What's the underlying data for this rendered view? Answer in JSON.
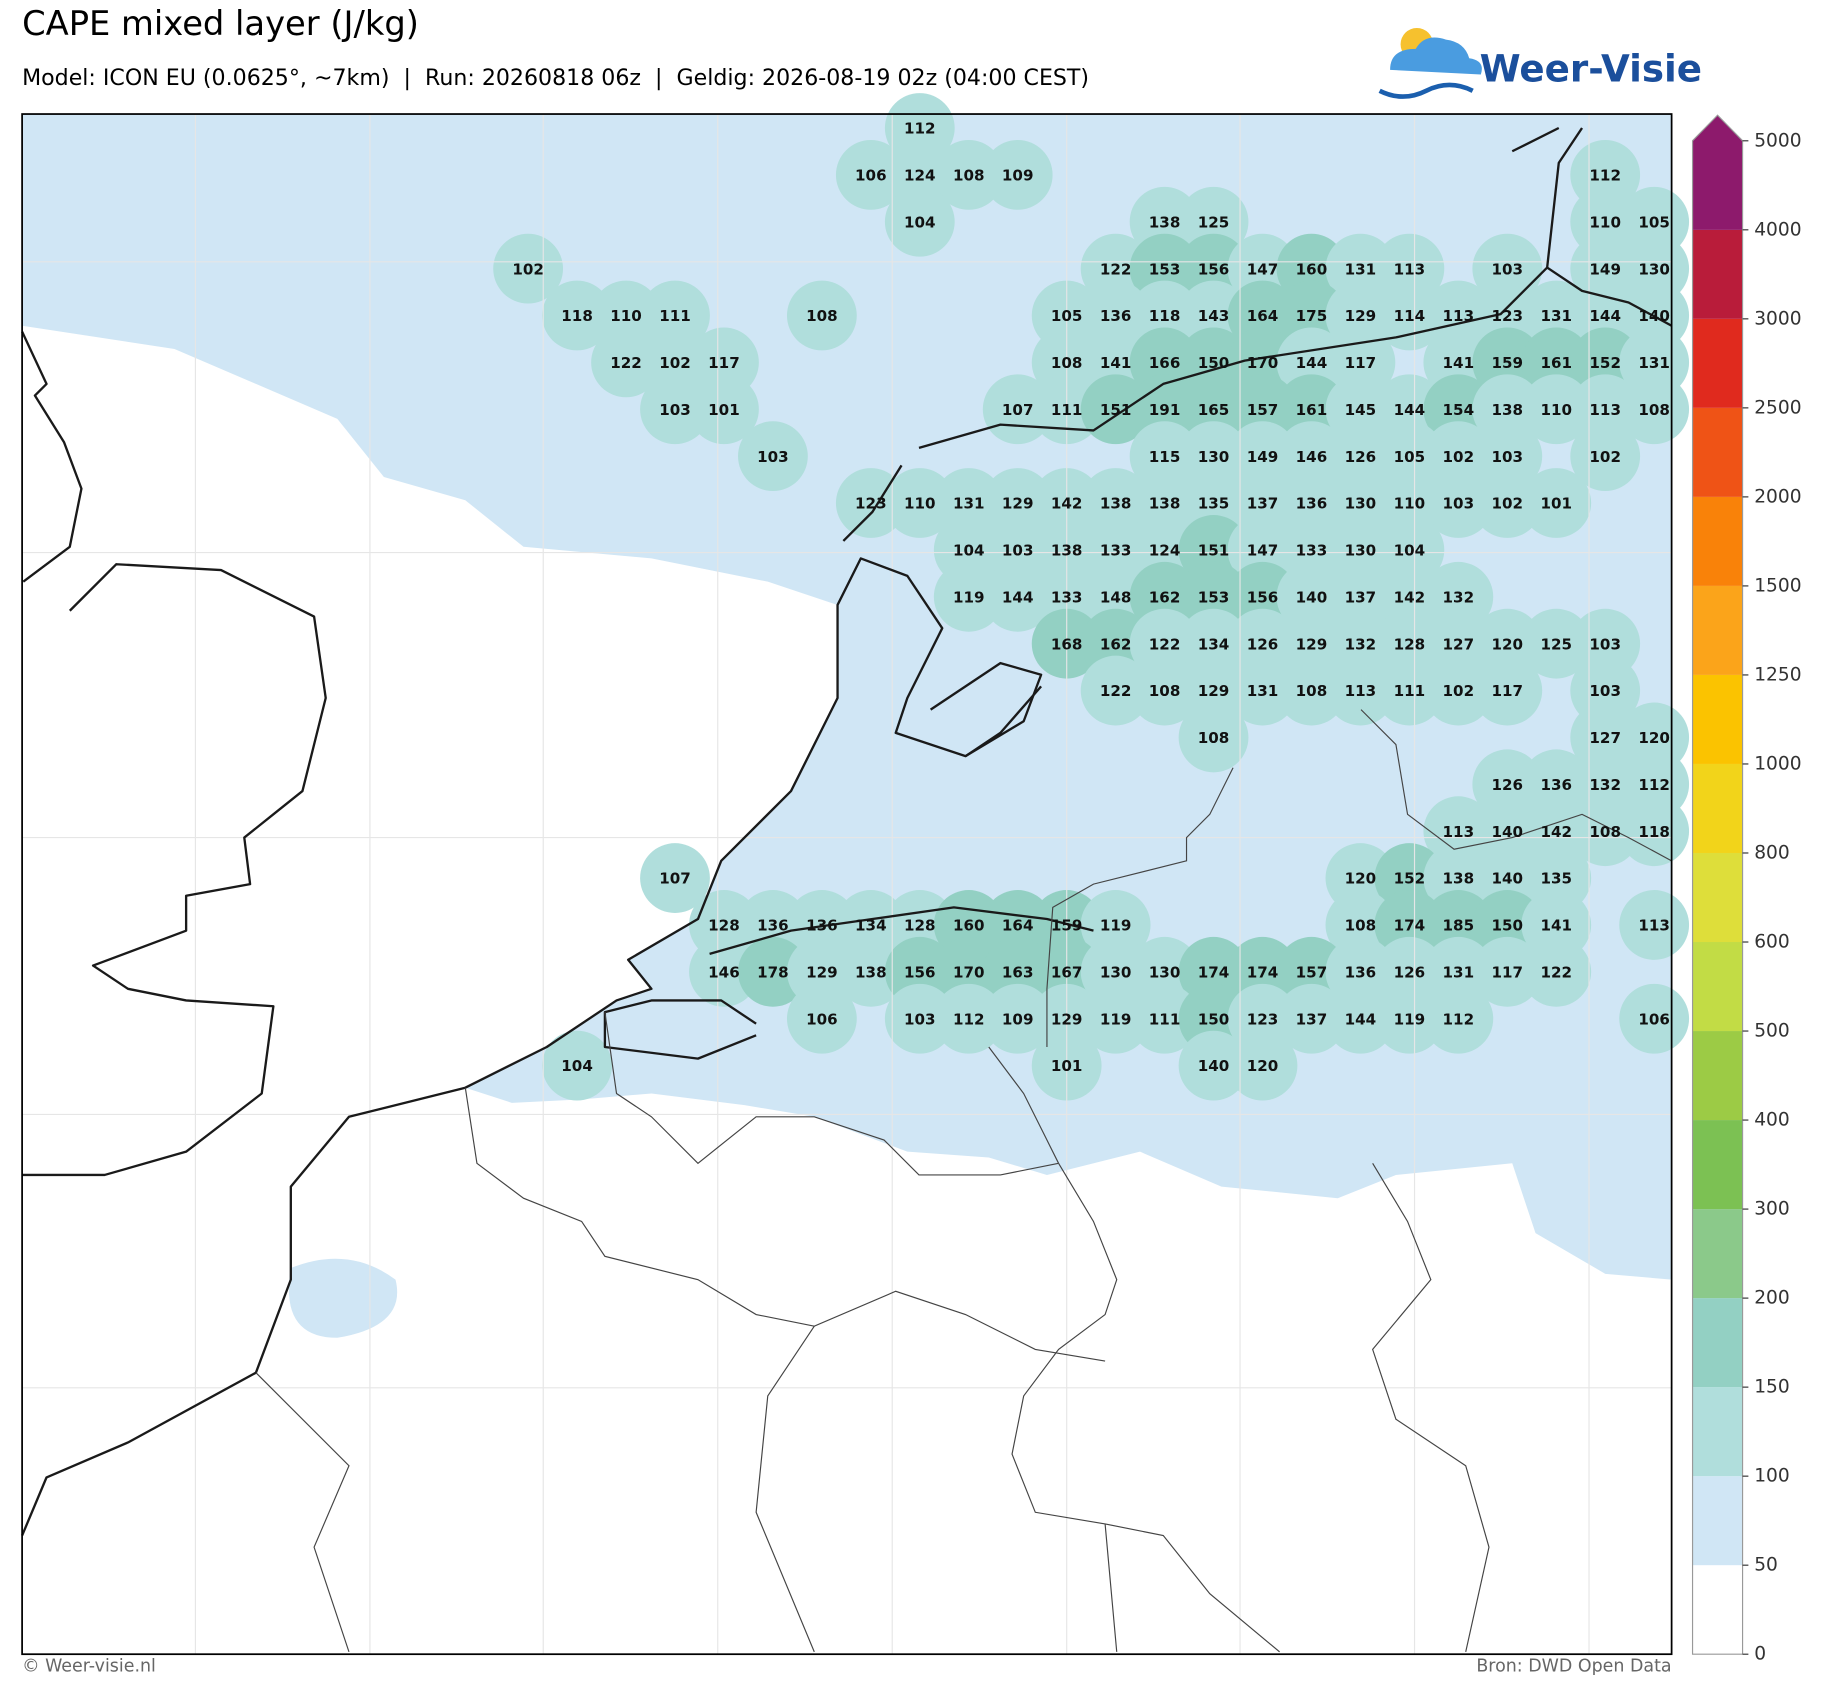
{
  "header": {
    "title": "CAPE mixed layer (J/kg)",
    "subtitle": "Model: ICON EU (0.0625°, ~7km)  |  Run: 20260818 06z  |  Geldig: 2026-08-19 02z (04:00 CEST)"
  },
  "logo": "Weer-Visie",
  "footer": {
    "credit": "© Weer-visie.nl",
    "source": "Bron: DWD Open Data"
  },
  "colorbar": {
    "levels": [
      0,
      50,
      100,
      150,
      200,
      300,
      400,
      500,
      600,
      800,
      1000,
      1250,
      1500,
      2000,
      2500,
      3000,
      4000,
      5000
    ],
    "colors": [
      "#ffffff",
      "#d0e6f5",
      "#b0dedc",
      "#93d0c3",
      "#8bc98a",
      "#7cc153",
      "#9ccb45",
      "#c2dc45",
      "#dede3a",
      "#f2d41a",
      "#fbc300",
      "#fba41a",
      "#f98209",
      "#ef5316",
      "#e02a1e",
      "#b91c3a",
      "#8d1a6c"
    ]
  },
  "cape_grid": [
    [
      null,
      null,
      null,
      null,
      null,
      null,
      null,
      null,
      112,
      null,
      null,
      null,
      null,
      null,
      null,
      null,
      null,
      null,
      null,
      null,
      null,
      null,
      null,
      null
    ],
    [
      null,
      null,
      null,
      null,
      null,
      null,
      null,
      106,
      124,
      108,
      109,
      null,
      null,
      null,
      null,
      null,
      null,
      null,
      null,
      null,
      null,
      null,
      112,
      null
    ],
    [
      null,
      null,
      null,
      null,
      null,
      null,
      null,
      null,
      104,
      null,
      null,
      null,
      null,
      138,
      125,
      null,
      null,
      null,
      null,
      null,
      null,
      null,
      110,
      105
    ],
    [
      102,
      null,
      null,
      null,
      null,
      null,
      null,
      null,
      null,
      null,
      null,
      null,
      122,
      153,
      156,
      147,
      160,
      131,
      113,
      null,
      103,
      null,
      149,
      130
    ],
    [
      null,
      118,
      110,
      111,
      null,
      null,
      108,
      null,
      null,
      null,
      null,
      105,
      136,
      118,
      143,
      164,
      175,
      129,
      114,
      113,
      123,
      131,
      144,
      140
    ],
    [
      null,
      null,
      122,
      102,
      117,
      null,
      null,
      null,
      null,
      null,
      null,
      108,
      141,
      166,
      150,
      170,
      144,
      117,
      null,
      141,
      159,
      161,
      152,
      131
    ],
    [
      null,
      null,
      null,
      103,
      101,
      null,
      null,
      null,
      null,
      null,
      107,
      111,
      151,
      191,
      165,
      157,
      161,
      145,
      144,
      154,
      138,
      110,
      113,
      108
    ],
    [
      null,
      null,
      null,
      null,
      null,
      103,
      null,
      null,
      null,
      null,
      null,
      null,
      null,
      115,
      130,
      149,
      146,
      126,
      105,
      102,
      103,
      null,
      102,
      null
    ],
    [
      null,
      null,
      null,
      null,
      null,
      null,
      null,
      123,
      110,
      131,
      129,
      142,
      138,
      138,
      135,
      137,
      136,
      130,
      110,
      103,
      102,
      101,
      null,
      null
    ],
    [
      null,
      null,
      null,
      null,
      null,
      null,
      null,
      null,
      null,
      104,
      103,
      138,
      133,
      124,
      151,
      147,
      133,
      130,
      104,
      null,
      null,
      null,
      null,
      null
    ],
    [
      null,
      null,
      null,
      null,
      null,
      null,
      null,
      null,
      null,
      119,
      144,
      133,
      148,
      162,
      153,
      156,
      140,
      137,
      142,
      132,
      null,
      null,
      null,
      null
    ],
    [
      null,
      null,
      null,
      null,
      null,
      null,
      null,
      null,
      null,
      null,
      null,
      168,
      162,
      122,
      134,
      126,
      129,
      132,
      128,
      127,
      120,
      125,
      103,
      null
    ],
    [
      null,
      null,
      null,
      null,
      null,
      null,
      null,
      null,
      null,
      null,
      null,
      null,
      122,
      108,
      129,
      131,
      108,
      113,
      111,
      102,
      117,
      null,
      103,
      null
    ],
    [
      null,
      null,
      null,
      null,
      null,
      null,
      null,
      null,
      null,
      null,
      null,
      null,
      null,
      null,
      108,
      null,
      null,
      null,
      null,
      null,
      null,
      null,
      127,
      120
    ],
    [
      null,
      null,
      null,
      null,
      null,
      null,
      null,
      null,
      null,
      null,
      null,
      null,
      null,
      null,
      null,
      null,
      null,
      null,
      null,
      null,
      126,
      136,
      132,
      112
    ],
    [
      null,
      null,
      null,
      null,
      null,
      null,
      null,
      null,
      null,
      null,
      null,
      null,
      null,
      null,
      null,
      null,
      null,
      null,
      null,
      113,
      140,
      142,
      108,
      118
    ],
    [
      null,
      null,
      null,
      107,
      null,
      null,
      null,
      null,
      null,
      null,
      null,
      null,
      null,
      null,
      null,
      null,
      null,
      120,
      152,
      138,
      140,
      135,
      null,
      null
    ],
    [
      null,
      null,
      null,
      null,
      128,
      136,
      136,
      134,
      128,
      160,
      164,
      159,
      119,
      null,
      null,
      null,
      null,
      108,
      174,
      185,
      150,
      141,
      null,
      113
    ],
    [
      null,
      null,
      null,
      null,
      146,
      178,
      129,
      138,
      156,
      170,
      163,
      167,
      130,
      130,
      174,
      174,
      157,
      136,
      126,
      131,
      117,
      122,
      null,
      null
    ],
    [
      null,
      null,
      null,
      null,
      null,
      null,
      106,
      null,
      103,
      112,
      109,
      129,
      119,
      111,
      150,
      123,
      137,
      144,
      119,
      112,
      null,
      null,
      null,
      106
    ],
    [
      null,
      104,
      null,
      null,
      null,
      null,
      null,
      null,
      null,
      null,
      null,
      101,
      null,
      null,
      140,
      120,
      null,
      null,
      null,
      null,
      null,
      null,
      null,
      null
    ]
  ]
}
